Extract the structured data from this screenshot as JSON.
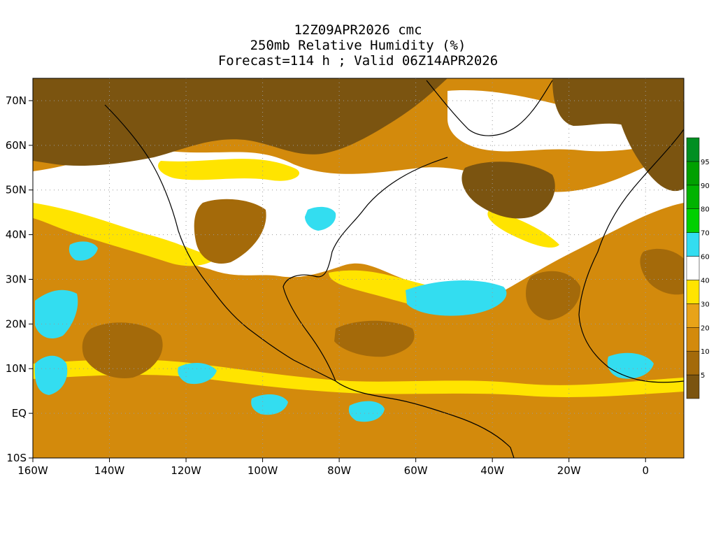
{
  "title": {
    "line1": "12Z09APR2026 cmc",
    "line2": "250mb Relative Humidity (%)",
    "line3": "Forecast=114 h ; Valid 06Z14APR2026"
  },
  "axes": {
    "lon_labels": [
      "160W",
      "140W",
      "120W",
      "100W",
      "80W",
      "60W",
      "40W",
      "20W",
      "0"
    ],
    "lon_values": [
      -160,
      -140,
      -120,
      -100,
      -80,
      -60,
      -40,
      -20,
      0
    ],
    "lat_labels": [
      "70N",
      "60N",
      "50N",
      "40N",
      "30N",
      "20N",
      "10N",
      "EQ",
      "10S"
    ],
    "lat_values": [
      70,
      60,
      50,
      40,
      30,
      20,
      10,
      0,
      -10
    ],
    "lon_range": [
      -160,
      10
    ],
    "lat_range": [
      -10,
      75
    ]
  },
  "colorbar": {
    "labels": [
      "5",
      "10",
      "20",
      "30",
      "40",
      "60",
      "70",
      "80",
      "90",
      "95"
    ],
    "colors": [
      "#7b5410",
      "#a46a0a",
      "#d38a0c",
      "#e8a318",
      "#ffe400",
      "#ffffff",
      "#33ddf0",
      "#00d000",
      "#00b300",
      "#00a000",
      "#008f22"
    ]
  },
  "colors": {
    "brown": "#7b5410",
    "dark_orange": "#a46a0a",
    "orange": "#d38a0c",
    "light_orange": "#e8a318",
    "yellow": "#ffe400",
    "white": "#ffffff",
    "cyan": "#33ddf0",
    "coast": "#000000",
    "grid": "#9a9a9a"
  }
}
